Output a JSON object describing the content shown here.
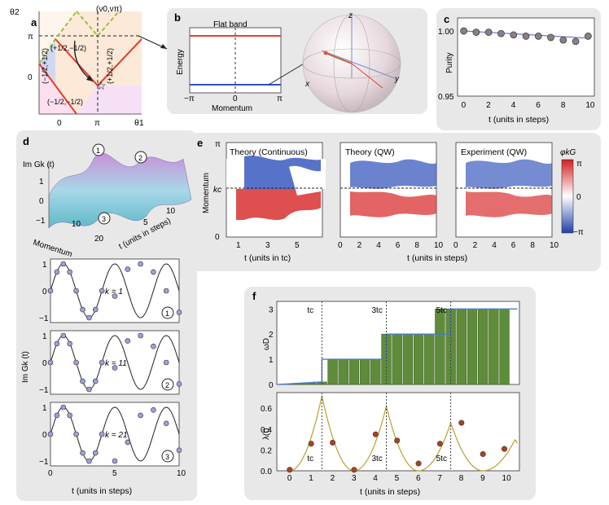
{
  "panel_labels": {
    "a": "a",
    "b": "b",
    "c": "c",
    "d": "d",
    "e": "e",
    "f": "f"
  },
  "panel_a": {
    "ylabel": "θ2",
    "xlabel": "θ1",
    "corner_label": "(ν0,νπ)",
    "yticks": [
      "π",
      "0"
    ],
    "xticks": [
      "0",
      "π"
    ],
    "regions": [
      "(+1/2,−1/2)",
      "(−1/2,+1/2)",
      "(+1/2,+1/2)",
      "(−1/2,−1/2)"
    ]
  },
  "panel_b": {
    "title": "Flat band",
    "ylabel": "Energy",
    "xlabel": "Momentum",
    "xticks": [
      "−π",
      "0",
      "π"
    ],
    "axes": [
      "z",
      "x",
      "y"
    ]
  },
  "panel_c": {
    "ylabel": "Purity",
    "xlabel": "t (units in steps)",
    "yticks": [
      "1.00",
      "0.95"
    ],
    "xticks": [
      "0",
      "2",
      "4",
      "6",
      "8",
      "10"
    ],
    "chart_data": {
      "type": "scatter",
      "x": [
        0,
        1,
        2,
        3,
        4,
        5,
        6,
        7,
        8,
        9,
        10
      ],
      "y": [
        1.0,
        0.999,
        0.999,
        0.998,
        0.997,
        0.996,
        0.996,
        0.995,
        0.993,
        0.992,
        0.996
      ],
      "ylim": [
        0.95,
        1.01
      ],
      "xlim": [
        -0.5,
        10.5
      ]
    }
  },
  "panel_d": {
    "surface_zlabel": "Im Gk (t)",
    "surface_xlabel": "Momentum",
    "surface_ylabel": "t (units in steps)",
    "surface_zticks": [
      "1",
      "0",
      "−1"
    ],
    "surface_xticks": [
      "10",
      "20"
    ],
    "surface_yticks": [
      "5",
      "10"
    ],
    "markers": [
      "1",
      "2",
      "3"
    ],
    "ylabel": "Im Gk (t)",
    "xlabel": "t (units in steps)",
    "xticks": [
      "0",
      "5",
      "10"
    ],
    "yticks": [
      "1",
      "0",
      "−1"
    ],
    "subplots": [
      {
        "label": "k = 1",
        "marker": "1",
        "points": [
          [
            0,
            0
          ],
          [
            0.5,
            0.7
          ],
          [
            1,
            1.0
          ],
          [
            1.5,
            0.7
          ],
          [
            2,
            0
          ],
          [
            2.5,
            -0.7
          ],
          [
            3,
            -1.0
          ],
          [
            3.5,
            -0.7
          ],
          [
            4,
            0
          ],
          [
            5,
            -0.2
          ],
          [
            6,
            0.8
          ],
          [
            7,
            1.0
          ],
          [
            8,
            0.7
          ],
          [
            9,
            0
          ],
          [
            10,
            -0.8
          ]
        ]
      },
      {
        "label": "k = 11",
        "marker": "2",
        "points": [
          [
            0,
            0
          ],
          [
            0.5,
            0.7
          ],
          [
            1,
            1.0
          ],
          [
            1.5,
            0.7
          ],
          [
            2,
            0
          ],
          [
            2.5,
            -0.7
          ],
          [
            3,
            -1.0
          ],
          [
            3.5,
            -0.7
          ],
          [
            4,
            0
          ],
          [
            5,
            -0.2
          ],
          [
            6,
            0.8
          ],
          [
            7,
            1.0
          ],
          [
            8,
            0.6
          ],
          [
            9,
            0
          ],
          [
            10,
            -0.8
          ]
        ]
      },
      {
        "label": "k = 21",
        "marker": "3",
        "points": [
          [
            0,
            0
          ],
          [
            0.5,
            0.7
          ],
          [
            1,
            1.0
          ],
          [
            1.5,
            0.7
          ],
          [
            2,
            0
          ],
          [
            2.5,
            -0.7
          ],
          [
            3,
            -1.0
          ],
          [
            3.5,
            -0.7
          ],
          [
            4,
            0
          ],
          [
            5,
            -1.0
          ],
          [
            6,
            -0.3
          ],
          [
            7,
            0.7
          ],
          [
            8,
            0.9
          ],
          [
            9,
            0.4
          ],
          [
            10,
            -0.6
          ]
        ]
      }
    ]
  },
  "panel_e": {
    "ylabel": "Momentum",
    "yticks": [
      "π",
      "kc",
      "0"
    ],
    "maps": [
      {
        "title": "Theory (Continuous)",
        "xticks": [
          "1",
          "3",
          "5"
        ],
        "xlabel": "t (units in tc)"
      },
      {
        "title": "Theory (QW)",
        "xticks": [
          "0",
          "2",
          "4",
          "6",
          "8",
          "10"
        ]
      },
      {
        "title": "Experiment (QW)",
        "xticks": [
          "0",
          "2",
          "4",
          "6",
          "8",
          "10"
        ]
      }
    ],
    "xlabel": "t (units in steps)",
    "colorbar": {
      "label": "φkG",
      "ticks": [
        "π",
        "0",
        "−π"
      ]
    }
  },
  "panel_f": {
    "top": {
      "ylabel": "ωD",
      "yticks": [
        "3",
        "2",
        "1",
        "0"
      ],
      "annotations": [
        "tc",
        "3tc",
        "5tc"
      ],
      "chart_data": {
        "type": "bar",
        "x": [
          0,
          0.5,
          1,
          1.5,
          2,
          2.5,
          3,
          3.5,
          4,
          4.5,
          5,
          5.5,
          6,
          6.5,
          7,
          7.5,
          8,
          8.5,
          9,
          9.5,
          10
        ],
        "values": [
          0.02,
          0.04,
          0.06,
          0.1,
          1.0,
          1.0,
          1.0,
          1.0,
          1.0,
          2.0,
          2.0,
          2.0,
          2.0,
          2.0,
          3.0,
          3.0,
          3.0,
          3.0,
          3.0,
          3.0,
          3.0
        ],
        "ylim": [
          0,
          3.3
        ]
      }
    },
    "bottom": {
      "ylabel": "λ(t)",
      "yticks": [
        "0.6",
        "0.4",
        "0.2",
        "0.0"
      ],
      "xticks": [
        "0",
        "1",
        "2",
        "3",
        "4",
        "5",
        "6",
        "7",
        "8",
        "9",
        "10"
      ],
      "xlabel": "t (units in steps)",
      "annotations": [
        "tc",
        "3tc",
        "5tc"
      ],
      "chart_data": {
        "type": "scatter",
        "x": [
          0,
          1,
          2,
          3,
          4,
          5,
          6,
          7,
          8,
          9,
          10
        ],
        "y": [
          0.01,
          0.26,
          0.27,
          0.01,
          0.35,
          0.29,
          0.07,
          0.26,
          0.46,
          0.16,
          0.21
        ],
        "ylim": [
          0,
          0.75
        ]
      }
    }
  }
}
